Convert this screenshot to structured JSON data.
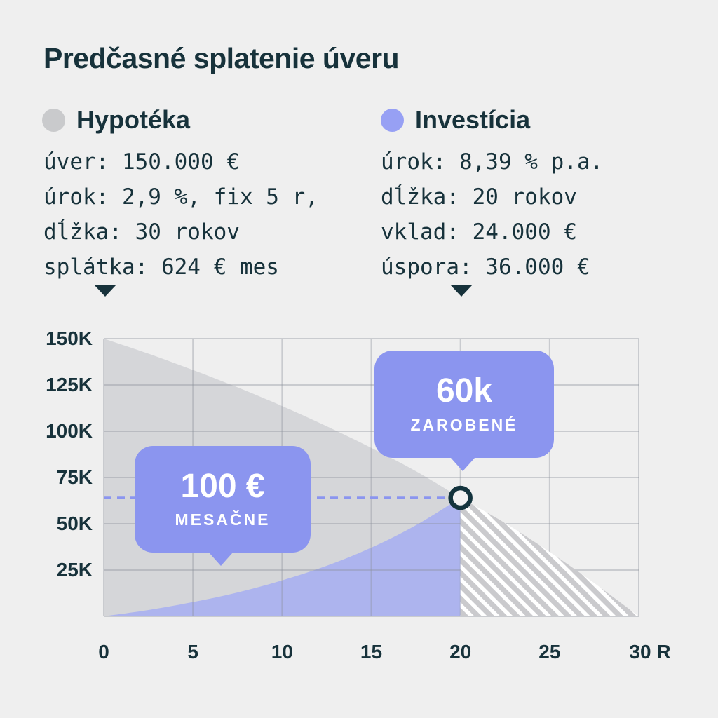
{
  "title": "Predčasné splatenie úveru",
  "colors": {
    "background": "#efefef",
    "text_dark": "#17323b",
    "accent_purple": "#8b95ef",
    "area_purple": "#adb4ee",
    "area_gray": "#d5d6d9",
    "legend_gray_dot": "#c9cacc",
    "legend_purple_dot": "#97a0f4",
    "hatch_gray": "#cacacd",
    "marker_stroke": "#13333d"
  },
  "legend": {
    "mortgage": {
      "label": "Hypotéka",
      "color": "#c9cacc",
      "details": [
        "úver: 150.000 €",
        "úrok: 2,9 %, fix 5 r,",
        "dĺžka: 30 rokov",
        "splátka: 624 € mes"
      ]
    },
    "investment": {
      "label": "Investícia",
      "color": "#97a0f4",
      "details": [
        "úrok: 8,39 % p.a.",
        "dĺžka: 20 rokov",
        "vklad: 24.000 €",
        "úspora: 36.000 €"
      ]
    }
  },
  "chart_data": {
    "type": "area",
    "xlim": [
      0,
      30
    ],
    "ylim": [
      0,
      150000
    ],
    "grid": true,
    "x_ticks": [
      {
        "x": 0,
        "label": "0"
      },
      {
        "x": 5,
        "label": "5"
      },
      {
        "x": 10,
        "label": "10"
      },
      {
        "x": 15,
        "label": "15"
      },
      {
        "x": 20,
        "label": "20"
      },
      {
        "x": 25,
        "label": "25"
      },
      {
        "x": 30,
        "label": "30 R"
      }
    ],
    "y_ticks": [
      {
        "y": 0,
        "label": ""
      },
      {
        "y": 25000,
        "label": "25K"
      },
      {
        "y": 50000,
        "label": "50K"
      },
      {
        "y": 75000,
        "label": "75K"
      },
      {
        "y": 100000,
        "label": "100K"
      },
      {
        "y": 125000,
        "label": "125K"
      },
      {
        "y": 150000,
        "label": "150K"
      }
    ],
    "series": [
      {
        "name": "Hypotéka – zostatok úveru (roky 0–20)",
        "type": "area",
        "fill": "#d5d6d9",
        "x": [
          0,
          2.5,
          5,
          7.5,
          10,
          12.5,
          15,
          17.5,
          20
        ],
        "y": [
          150000,
          141900,
          133100,
          123700,
          113600,
          102700,
          91000,
          78400,
          64000
        ]
      },
      {
        "name": "Hypotéka – zostatok po roku 20, predčasne splatené (šrafované)",
        "type": "area-hatched",
        "hatch_color": "#cacacd",
        "x": [
          20,
          22.5,
          25,
          27.5,
          30
        ],
        "y": [
          64000,
          50400,
          34800,
          18000,
          0
        ]
      },
      {
        "name": "Investícia – hodnota portfólia",
        "type": "area",
        "fill": "#adb4ee",
        "x": [
          0,
          2.5,
          5,
          7.5,
          10,
          12.5,
          15,
          17.5,
          20
        ],
        "y": [
          0,
          3400,
          7700,
          12900,
          19400,
          27300,
          37100,
          49200,
          64000
        ]
      }
    ],
    "reference_line": {
      "type": "dashed-horizontal",
      "y": 64000,
      "x_from": 0,
      "x_to": 20,
      "color": "#8b95ef"
    },
    "marker": {
      "x": 20,
      "y": 64000,
      "shape": "circle",
      "stroke": "#13333d"
    },
    "annotations": [
      {
        "value": "100 €",
        "label": "MESAČNE"
      },
      {
        "value": "60k",
        "label": "ZAROBENÉ"
      }
    ]
  }
}
